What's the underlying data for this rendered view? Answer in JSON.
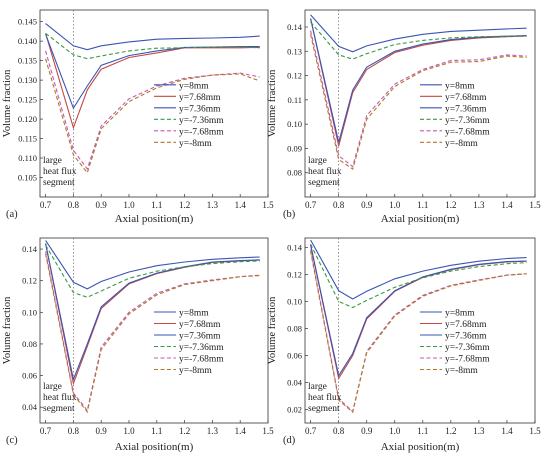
{
  "chart_data": [
    {
      "panel_label": "(a)",
      "type": "line",
      "xlabel": "Axial position(m)",
      "ylabel": "Volume fraction",
      "xlim": [
        0.68,
        1.5
      ],
      "ylim": [
        0.1,
        0.148
      ],
      "xticks": [
        "0.7",
        "0.8",
        "0.9",
        "1.0",
        "1.1",
        "1.2",
        "1.3",
        "1.4",
        "1.5"
      ],
      "yticks": [
        "0.105",
        "0.110",
        "0.115",
        "0.120",
        "0.125",
        "0.130",
        "0.135",
        "0.140",
        "0.145"
      ],
      "marker_line_x": 0.8,
      "annotation": [
        "large",
        "heat flux",
        "segment"
      ],
      "legend_position": "right",
      "x": [
        0.7,
        0.8,
        0.85,
        0.9,
        1.0,
        1.1,
        1.2,
        1.3,
        1.4,
        1.47
      ],
      "series": [
        {
          "name": "y=8mm",
          "color": "#3a55b4",
          "dash": "solid",
          "values": [
            0.1445,
            0.1388,
            0.1378,
            0.1388,
            0.1398,
            0.1405,
            0.1407,
            0.1408,
            0.141,
            0.1413
          ]
        },
        {
          "name": "y=7.68mm",
          "color": "#c24a45",
          "dash": "solid",
          "values": [
            0.142,
            0.1178,
            0.1275,
            0.1328,
            0.1358,
            0.137,
            0.1383,
            0.1383,
            0.1383,
            0.1384
          ]
        },
        {
          "name": "y=7.36mm",
          "color": "#3a55b4",
          "dash": "solid",
          "values": [
            0.1418,
            0.1228,
            0.1285,
            0.1338,
            0.1363,
            0.1375,
            0.1384,
            0.1385,
            0.1386,
            0.1386
          ]
        },
        {
          "name": "y=-7.36mm",
          "color": "#3a9a45",
          "dash": "dashed",
          "values": [
            0.142,
            0.1365,
            0.1355,
            0.1362,
            0.1375,
            0.1382,
            0.1383,
            0.1385,
            0.1385,
            0.1383
          ]
        },
        {
          "name": "y=-7.68mm",
          "color": "#c25ab4",
          "dash": "dashed",
          "values": [
            0.1375,
            0.112,
            0.1072,
            0.1182,
            0.1252,
            0.1285,
            0.1305,
            0.1313,
            0.1318,
            0.1308
          ]
        },
        {
          "name": "y=-8mm",
          "color": "#b07828",
          "dash": "dashed",
          "values": [
            0.1355,
            0.1108,
            0.1062,
            0.1175,
            0.1245,
            0.128,
            0.1302,
            0.1313,
            0.1316,
            0.1298
          ]
        }
      ]
    },
    {
      "panel_label": "(b)",
      "type": "line",
      "xlabel": "Axial position(m)",
      "ylabel": "Volume fraction",
      "xlim": [
        0.68,
        1.5
      ],
      "ylim": [
        0.07,
        0.147
      ],
      "xticks": [
        "0.7",
        "0.8",
        "0.9",
        "1.0",
        "1.1",
        "1.2",
        "1.3",
        "1.4",
        "1.5"
      ],
      "yticks": [
        "0.08",
        "0.09",
        "0.10",
        "0.11",
        "0.12",
        "0.13",
        "0.14"
      ],
      "marker_line_x": 0.8,
      "annotation": [
        "large",
        "heat flux",
        "segment"
      ],
      "legend_position": "right",
      "x": [
        0.7,
        0.8,
        0.85,
        0.9,
        1.0,
        1.1,
        1.2,
        1.3,
        1.4,
        1.47
      ],
      "series": [
        {
          "name": "y=8mm",
          "color": "#3a55b4",
          "dash": "solid",
          "values": [
            0.145,
            0.132,
            0.1298,
            0.1322,
            0.135,
            0.137,
            0.1382,
            0.1387,
            0.1392,
            0.1395
          ]
        },
        {
          "name": "y=7.68mm",
          "color": "#c24a45",
          "dash": "solid",
          "values": [
            0.1435,
            0.091,
            0.113,
            0.1225,
            0.1295,
            0.1325,
            0.1345,
            0.1355,
            0.136,
            0.1363
          ]
        },
        {
          "name": "y=7.36mm",
          "color": "#3a55b4",
          "dash": "solid",
          "values": [
            0.1435,
            0.0925,
            0.114,
            0.1235,
            0.13,
            0.133,
            0.1348,
            0.1358,
            0.1362,
            0.1365
          ]
        },
        {
          "name": "y=-7.36mm",
          "color": "#3a9a45",
          "dash": "dashed",
          "values": [
            0.142,
            0.1285,
            0.1268,
            0.129,
            0.1328,
            0.1345,
            0.1355,
            0.136,
            0.1362,
            0.1362
          ]
        },
        {
          "name": "y=-7.68mm",
          "color": "#c25ab4",
          "dash": "dashed",
          "values": [
            0.1385,
            0.087,
            0.0825,
            0.1035,
            0.1165,
            0.1225,
            0.1262,
            0.1265,
            0.1285,
            0.128
          ]
        },
        {
          "name": "y=-8mm",
          "color": "#b07828",
          "dash": "dashed",
          "values": [
            0.137,
            0.0855,
            0.0815,
            0.102,
            0.1155,
            0.122,
            0.1255,
            0.1258,
            0.128,
            0.1275
          ]
        }
      ]
    },
    {
      "panel_label": "(c)",
      "type": "line",
      "xlabel": "Axial position(m)",
      "ylabel": "Volume fraction",
      "xlim": [
        0.68,
        1.5
      ],
      "ylim": [
        0.03,
        0.147
      ],
      "xticks": [
        "0.7",
        "0.8",
        "0.9",
        "1.0",
        "1.1",
        "1.2",
        "1.3",
        "1.4",
        "1.5"
      ],
      "yticks": [
        "0.04",
        "0.06",
        "0.08",
        "0.10",
        "0.12",
        "0.14"
      ],
      "marker_line_x": 0.8,
      "annotation": [
        "large",
        "heat flux",
        "segment"
      ],
      "legend_position": "right",
      "x": [
        0.7,
        0.8,
        0.85,
        0.9,
        1.0,
        1.1,
        1.2,
        1.3,
        1.4,
        1.47
      ],
      "series": [
        {
          "name": "y=8mm",
          "color": "#3a55b4",
          "dash": "solid",
          "values": [
            0.1455,
            0.119,
            0.1148,
            0.1195,
            0.1255,
            0.1295,
            0.1318,
            0.1335,
            0.1345,
            0.135
          ]
        },
        {
          "name": "y=7.68mm",
          "color": "#c24a45",
          "dash": "solid",
          "values": [
            0.1435,
            0.055,
            0.0785,
            0.1025,
            0.118,
            0.1245,
            0.1285,
            0.1315,
            0.1325,
            0.133
          ]
        },
        {
          "name": "y=7.36mm",
          "color": "#3a55b4",
          "dash": "solid",
          "values": [
            0.1435,
            0.0575,
            0.08,
            0.1035,
            0.1185,
            0.1248,
            0.1288,
            0.1318,
            0.1327,
            0.1332
          ]
        },
        {
          "name": "y=-7.36mm",
          "color": "#3a9a45",
          "dash": "dashed",
          "values": [
            0.1425,
            0.1125,
            0.1095,
            0.1135,
            0.1215,
            0.126,
            0.1288,
            0.1308,
            0.132,
            0.1325
          ]
        },
        {
          "name": "y=-7.68mm",
          "color": "#c25ab4",
          "dash": "dashed",
          "values": [
            0.1385,
            0.049,
            0.038,
            0.078,
            0.1,
            0.112,
            0.118,
            0.1205,
            0.1225,
            0.1235
          ]
        },
        {
          "name": "y=-8mm",
          "color": "#b07828",
          "dash": "dashed",
          "values": [
            0.137,
            0.048,
            0.037,
            0.0765,
            0.099,
            0.111,
            0.1175,
            0.12,
            0.1225,
            0.1232
          ]
        }
      ]
    },
    {
      "panel_label": "(d)",
      "type": "line",
      "xlabel": "Axial position(m)",
      "ylabel": "Volume fraction",
      "xlim": [
        0.68,
        1.5
      ],
      "ylim": [
        0.01,
        0.147
      ],
      "xticks": [
        "0.7",
        "0.8",
        "0.9",
        "1.0",
        "1.1",
        "1.2",
        "1.3",
        "1.4",
        "1.5"
      ],
      "yticks": [
        "0.02",
        "0.04",
        "0.06",
        "0.08",
        "0.10",
        "0.12",
        "0.14"
      ],
      "marker_line_x": 0.8,
      "annotation": [
        "large",
        "heat flux",
        "segment"
      ],
      "legend_position": "right",
      "x": [
        0.7,
        0.8,
        0.85,
        0.9,
        1.0,
        1.1,
        1.2,
        1.3,
        1.4,
        1.47
      ],
      "series": [
        {
          "name": "y=8mm",
          "color": "#3a55b4",
          "dash": "solid",
          "values": [
            0.1455,
            0.108,
            0.1018,
            0.1075,
            0.1168,
            0.1225,
            0.1268,
            0.1298,
            0.1318,
            0.1325
          ]
        },
        {
          "name": "y=7.68mm",
          "color": "#c24a45",
          "dash": "solid",
          "values": [
            0.142,
            0.043,
            0.06,
            0.087,
            0.1075,
            0.1178,
            0.1235,
            0.1272,
            0.1292,
            0.1298
          ]
        },
        {
          "name": "y=7.36mm",
          "color": "#3a55b4",
          "dash": "solid",
          "values": [
            0.142,
            0.045,
            0.0615,
            0.088,
            0.108,
            0.1182,
            0.1238,
            0.1275,
            0.1295,
            0.13
          ]
        },
        {
          "name": "y=-7.36mm",
          "color": "#3a9a45",
          "dash": "dashed",
          "values": [
            0.1425,
            0.1,
            0.0955,
            0.1008,
            0.1105,
            0.1175,
            0.1225,
            0.1258,
            0.128,
            0.1288
          ]
        },
        {
          "name": "y=-7.68mm",
          "color": "#c25ab4",
          "dash": "dashed",
          "values": [
            0.1385,
            0.028,
            0.0185,
            0.063,
            0.09,
            0.1045,
            0.112,
            0.116,
            0.1195,
            0.1205
          ]
        },
        {
          "name": "y=-8mm",
          "color": "#b07828",
          "dash": "dashed",
          "values": [
            0.137,
            0.027,
            0.018,
            0.062,
            0.0893,
            0.1038,
            0.1115,
            0.1155,
            0.1195,
            0.1205
          ]
        }
      ]
    }
  ]
}
